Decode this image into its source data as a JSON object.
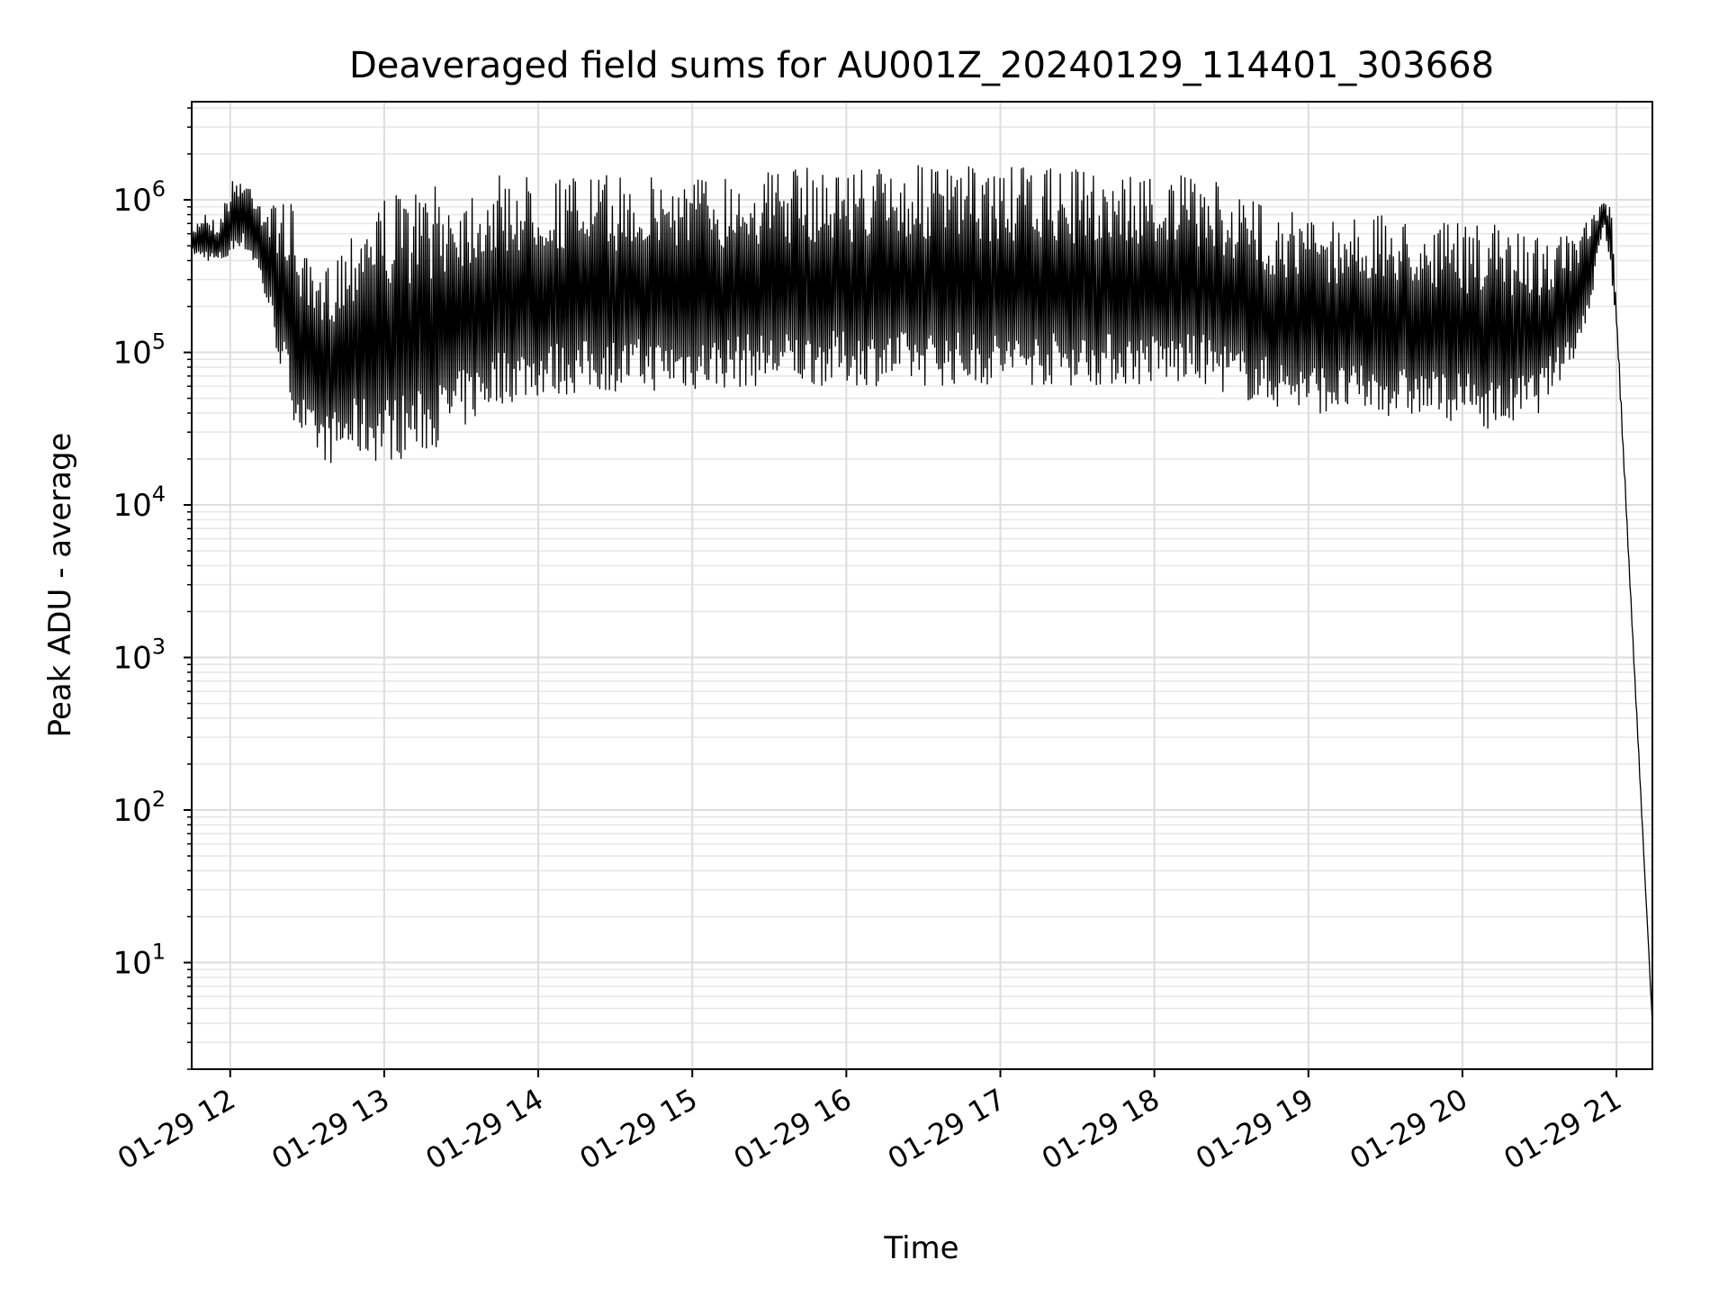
{
  "chart_data": {
    "type": "line",
    "title": "Deaveraged field sums for AU001Z_20240129_114401_303668",
    "xlabel": "Time",
    "ylabel": "Peak ADU - average",
    "yscale": "log",
    "grid": true,
    "legend": "none",
    "xlim": [
      "2024-01-29 11:45",
      "2024-01-29 21:14"
    ],
    "ylim": [
      2,
      4400000
    ],
    "x_ticks": [
      "01-29 12",
      "01-29 13",
      "01-29 14",
      "01-29 15",
      "01-29 16",
      "01-29 17",
      "01-29 18",
      "01-29 19",
      "01-29 20",
      "01-29 21"
    ],
    "y_ticks": [
      {
        "base": "10",
        "exp": "1",
        "value": 10
      },
      {
        "base": "10",
        "exp": "2",
        "value": 100
      },
      {
        "base": "10",
        "exp": "3",
        "value": 1000
      },
      {
        "base": "10",
        "exp": "4",
        "value": 10000
      },
      {
        "base": "10",
        "exp": "5",
        "value": 100000
      },
      {
        "base": "10",
        "exp": "6",
        "value": 1000000
      }
    ],
    "series": [
      {
        "color": "#000000",
        "x": [
          "2024-01-29 11:45",
          "2024-01-29 11:48",
          "2024-01-29 11:50",
          "2024-01-29 11:55",
          "2024-01-29 12:00",
          "2024-01-29 12:03",
          "2024-01-29 12:06",
          "2024-01-29 12:10",
          "2024-01-29 12:15",
          "2024-01-29 12:20",
          "2024-01-29 12:25",
          "2024-01-29 12:30",
          "2024-01-29 12:35",
          "2024-01-29 12:40",
          "2024-01-29 12:45",
          "2024-01-29 12:50",
          "2024-01-29 12:55",
          "2024-01-29 13:00",
          "2024-01-29 13:15",
          "2024-01-29 13:30",
          "2024-01-29 13:45",
          "2024-01-29 14:00",
          "2024-01-29 14:30",
          "2024-01-29 15:00",
          "2024-01-29 15:30",
          "2024-01-29 16:00",
          "2024-01-29 16:30",
          "2024-01-29 17:00",
          "2024-01-29 17:30",
          "2024-01-29 18:00",
          "2024-01-29 18:20",
          "2024-01-29 18:40",
          "2024-01-29 19:00",
          "2024-01-29 19:30",
          "2024-01-29 20:00",
          "2024-01-29 20:15",
          "2024-01-29 20:30",
          "2024-01-29 20:45",
          "2024-01-29 20:50",
          "2024-01-29 20:55",
          "2024-01-29 20:58",
          "2024-01-29 21:00",
          "2024-01-29 21:14"
        ],
        "upper": [
          600000,
          800000,
          900000,
          700000,
          1300000,
          1500000,
          1400000,
          1300000,
          900000,
          1100000,
          900000,
          400000,
          300000,
          500000,
          600000,
          900000,
          1100000,
          1100000,
          1200000,
          1300000,
          1450000,
          1500000,
          1450000,
          1500000,
          1600000,
          1700000,
          1700000,
          1650000,
          1600000,
          1500000,
          1400000,
          1000000,
          800000,
          800000,
          700000,
          700000,
          600000,
          600000,
          800000,
          1000000,
          900000,
          200000,
          4
        ],
        "lower": [
          450000,
          400000,
          400000,
          380000,
          400000,
          500000,
          450000,
          350000,
          180000,
          70000,
          35000,
          22000,
          20000,
          18000,
          20000,
          20000,
          19000,
          19000,
          21000,
          30000,
          45000,
          50000,
          55000,
          55000,
          60000,
          60000,
          60000,
          60000,
          60000,
          60000,
          60000,
          45000,
          40000,
          38000,
          35000,
          30000,
          40000,
          100000,
          200000,
          700000,
          300000,
          150000,
          4
        ]
      }
    ]
  }
}
